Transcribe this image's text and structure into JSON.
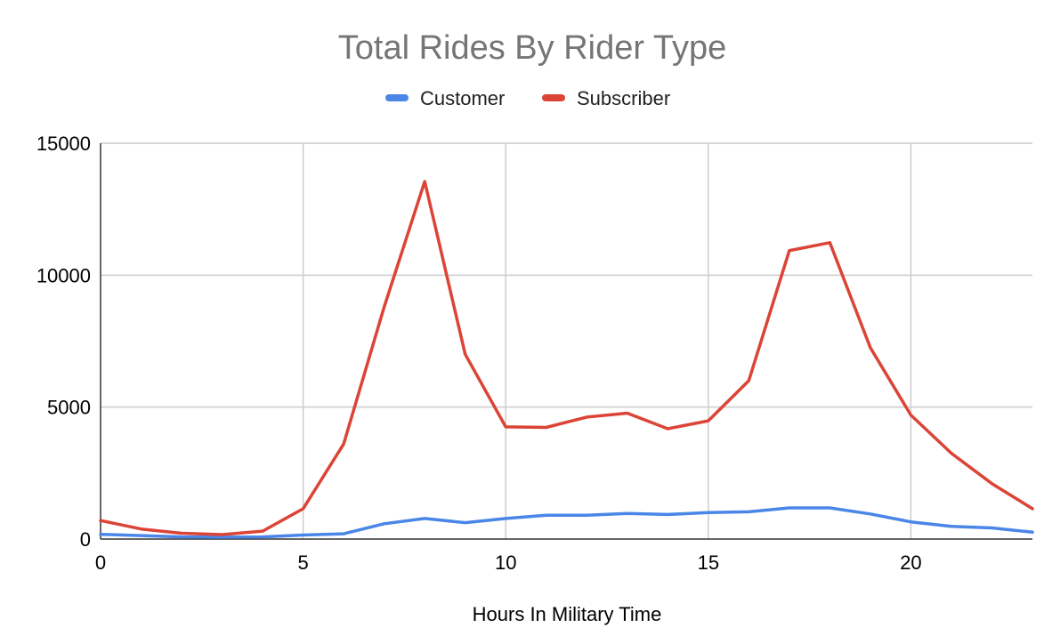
{
  "chart_data": {
    "type": "line",
    "title": "Total Rides By Rider Type",
    "xlabel": "Hours In Military Time",
    "ylabel": "",
    "xlim": [
      0,
      23
    ],
    "ylim": [
      0,
      15000
    ],
    "x_ticks": [
      0,
      5,
      10,
      15,
      20
    ],
    "y_ticks": [
      0,
      5000,
      10000,
      15000
    ],
    "grid": true,
    "legend_position": "top",
    "x": [
      0,
      1,
      2,
      3,
      4,
      5,
      6,
      7,
      8,
      9,
      10,
      11,
      12,
      13,
      14,
      15,
      16,
      17,
      18,
      19,
      20,
      21,
      22,
      23
    ],
    "series": [
      {
        "name": "Customer",
        "color": "#4a86e8",
        "values": [
          180,
          130,
          80,
          70,
          80,
          150,
          200,
          580,
          780,
          620,
          780,
          900,
          900,
          970,
          930,
          1000,
          1030,
          1180,
          1180,
          950,
          650,
          480,
          420,
          260
        ]
      },
      {
        "name": "Subscriber",
        "color": "#db4437",
        "values": [
          700,
          380,
          220,
          170,
          300,
          1150,
          3600,
          8800,
          13550,
          7000,
          4250,
          4230,
          4620,
          4770,
          4180,
          4480,
          6000,
          10930,
          11230,
          7250,
          4700,
          3250,
          2100,
          1150
        ]
      }
    ]
  }
}
